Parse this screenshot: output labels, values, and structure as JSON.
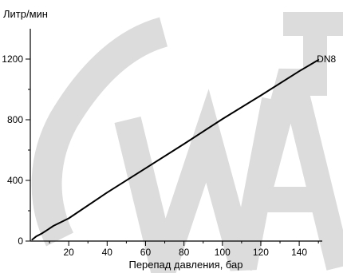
{
  "chart_data": {
    "type": "line",
    "xlabel": "Перепад давления, бар",
    "ylabel": "Литр/мин",
    "xlim": [
      0,
      152
    ],
    "ylim": [
      0,
      1400
    ],
    "x_ticks": [
      20,
      40,
      60,
      80,
      100,
      120,
      140
    ],
    "x_minor_ticks": [
      10,
      30,
      50,
      70,
      90,
      110,
      130,
      150
    ],
    "y_ticks": [
      0,
      400,
      800,
      1200
    ],
    "y_minor_ticks": [
      200,
      600,
      1000
    ],
    "grid": false,
    "series": [
      {
        "name": "DN8",
        "color": "#000000",
        "x": [
          1,
          3,
          6,
          9,
          12,
          20,
          40,
          60,
          80,
          100,
          120,
          140,
          150
        ],
        "y": [
          10,
          30,
          50,
          75,
          100,
          150,
          320,
          480,
          640,
          805,
          960,
          1120,
          1195
        ]
      }
    ],
    "watermark_color": "#dcdcdc"
  }
}
